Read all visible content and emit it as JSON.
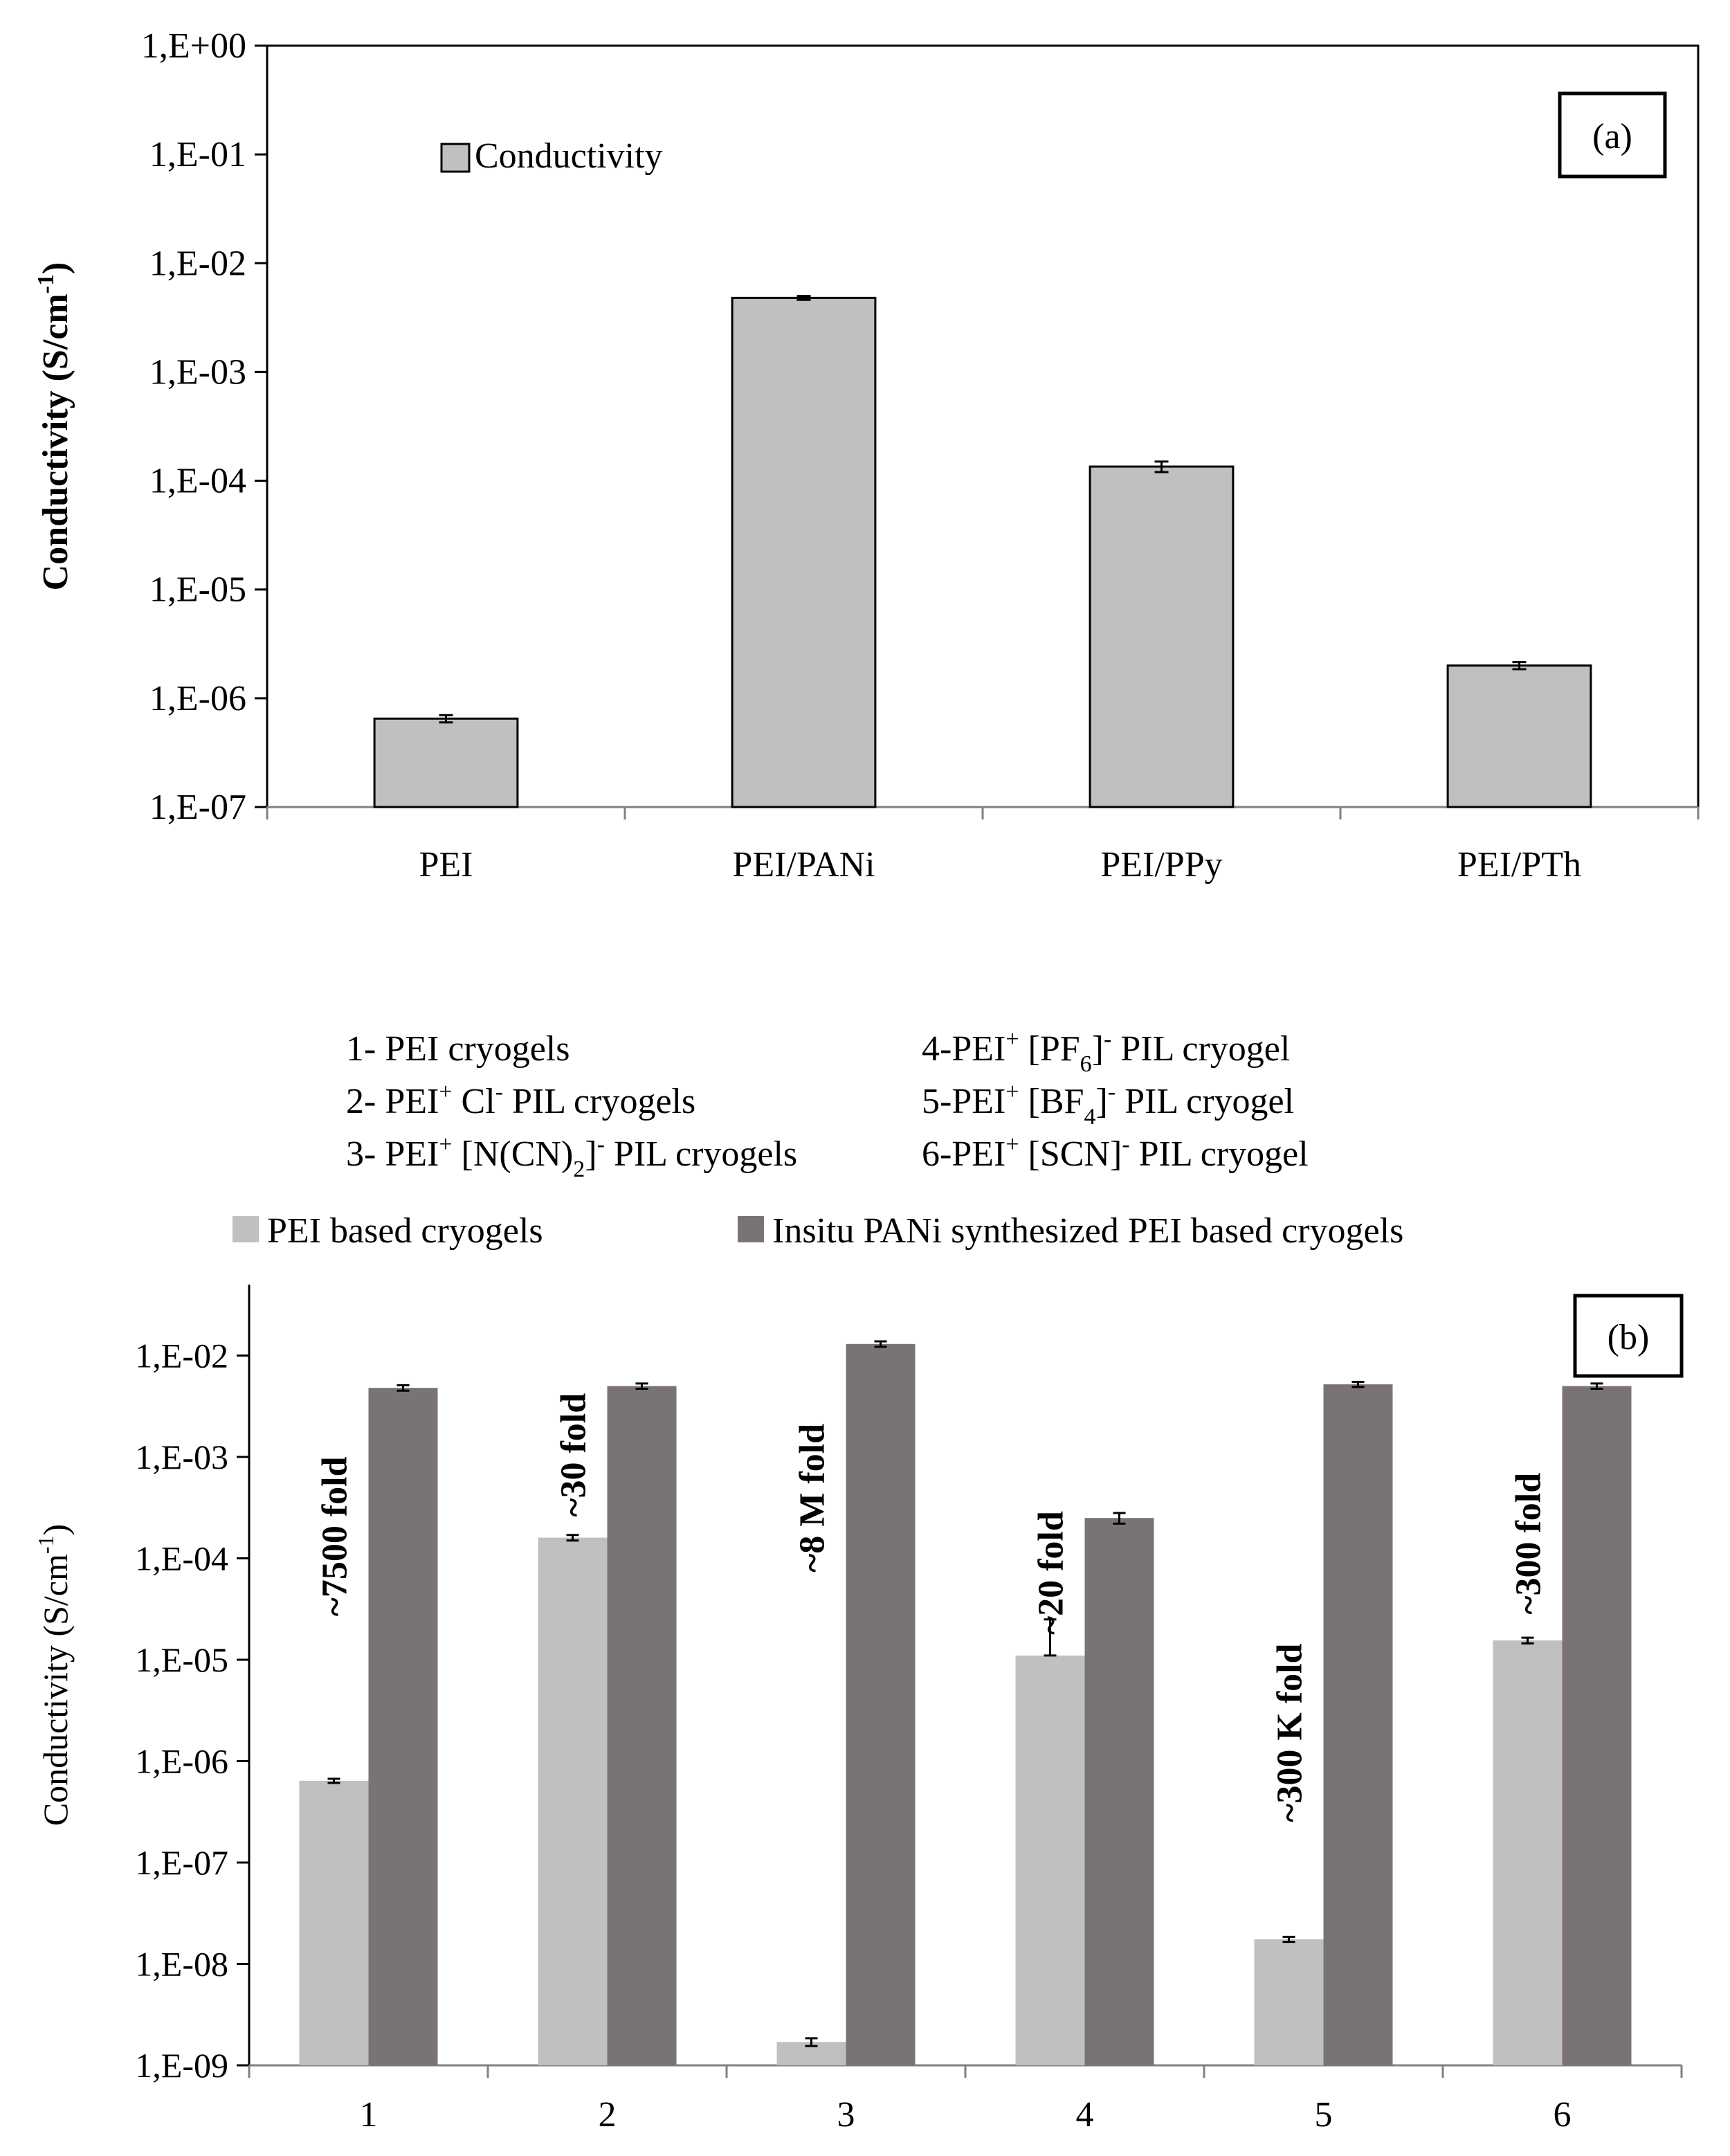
{
  "colors": {
    "bar_a": "#c0c0c0",
    "bar_light": "#c0c0c0",
    "bar_dark": "#7a7373",
    "axis": "#808080",
    "text": "#000000"
  },
  "chart_data": [
    {
      "type": "bar",
      "panel": "a",
      "panel_label": "(a)",
      "ylabel_main": "Conductivity (S/cm",
      "ylabel_sup": "-1",
      "ylabel_end": ")",
      "yscale": "log",
      "ylim": [
        1e-07,
        1
      ],
      "yticks": [
        1,
        0.1,
        0.01,
        0.001,
        0.0001,
        1e-05,
        1e-06,
        1e-07
      ],
      "ytick_labels": [
        "1,E+00",
        "1,E-01",
        "1,E-02",
        "1,E-03",
        "1,E-04",
        "1,E-05",
        "1,E-06",
        "1,E-07"
      ],
      "categories": [
        "PEI",
        "PEI/PANi",
        "PEI/PPy",
        "PEI/PTh"
      ],
      "series": [
        {
          "name": "Conductivity",
          "values": [
            6.5e-07,
            0.0048,
            0.000135,
            2e-06
          ],
          "errors": [
            5e-08,
            0.0002,
            1.5e-05,
            1.5e-07
          ]
        }
      ],
      "legend": "top-left"
    },
    {
      "type": "bar",
      "panel": "b",
      "panel_label": "(b)",
      "ylabel_main": "Conductivity (S/cm",
      "ylabel_sup": "-1",
      "ylabel_end": ")",
      "yscale": "log",
      "ylim": [
        1e-09,
        0.1
      ],
      "yticks": [
        0.01,
        0.001,
        0.0001,
        1e-05,
        1e-06,
        1e-07,
        1e-08,
        1e-09
      ],
      "ytick_labels": [
        "1,E-02",
        "1,E-03",
        "1,E-04",
        "1,E-05",
        "1,E-06",
        "1,E-07",
        "1,E-08",
        "1,E-09"
      ],
      "categories": [
        "1",
        "2",
        "3",
        "4",
        "5",
        "6"
      ],
      "series": [
        {
          "name": "PEI based cryogels",
          "values": [
            6.4e-07,
            0.00016,
            1.7e-09,
            1.1e-05,
            1.75e-08,
            1.55e-05
          ],
          "errors_up": [
            3e-08,
            1e-05,
            1.5e-10,
            1.4e-05,
            1e-09,
            1e-06
          ],
          "errors_down": [
            3e-08,
            1e-05,
            1.5e-10,
            0,
            1e-09,
            1e-06
          ]
        },
        {
          "name": "Insitu PANi synthesized PEI based cryogels",
          "values": [
            0.0048,
            0.005,
            0.013,
            0.00025,
            0.0052,
            0.005
          ],
          "errors_up": [
            0.0003,
            0.0003,
            0.0008,
            3e-05,
            0.0003,
            0.0003
          ],
          "errors_down": [
            0.0003,
            0.0003,
            0.0008,
            3e-05,
            0.0003,
            0.0003
          ]
        }
      ],
      "fold_annotations": [
        "~7500 fold",
        "~30 fold",
        "~8 M fold",
        "~20 fold",
        "~300 K fold",
        "~300 fold"
      ],
      "legend": "top",
      "sample_legend": [
        {
          "parts": [
            [
              "1- PEI cryogels",
              ""
            ]
          ]
        },
        {
          "parts": [
            [
              "4-PEI",
              ""
            ],
            [
              "+",
              "sup"
            ],
            [
              " [PF",
              ""
            ],
            [
              "6",
              "sub"
            ],
            [
              "]",
              ""
            ],
            [
              "-",
              "sup"
            ],
            [
              " PIL cryogel",
              ""
            ]
          ]
        },
        {
          "parts": [
            [
              "2- PEI",
              ""
            ],
            [
              "+",
              "sup"
            ],
            [
              " Cl",
              ""
            ],
            [
              "-",
              "sup"
            ],
            [
              " PIL cryogels",
              ""
            ]
          ]
        },
        {
          "parts": [
            [
              "5-PEI",
              ""
            ],
            [
              "+",
              "sup"
            ],
            [
              " [BF",
              ""
            ],
            [
              "4",
              "sub"
            ],
            [
              "]",
              ""
            ],
            [
              "-",
              "sup"
            ],
            [
              " PIL cryogel",
              ""
            ]
          ]
        },
        {
          "parts": [
            [
              "3- PEI",
              ""
            ],
            [
              "+",
              "sup"
            ],
            [
              " [N(CN)",
              ""
            ],
            [
              "2",
              "sub"
            ],
            [
              "]",
              ""
            ],
            [
              "-",
              "sup"
            ],
            [
              " PIL cryogels",
              ""
            ]
          ]
        },
        {
          "parts": [
            [
              "6-PEI",
              ""
            ],
            [
              "+",
              "sup"
            ],
            [
              " [SCN]",
              ""
            ],
            [
              "-",
              "sup"
            ],
            [
              " PIL cryogel",
              ""
            ]
          ]
        }
      ]
    }
  ]
}
